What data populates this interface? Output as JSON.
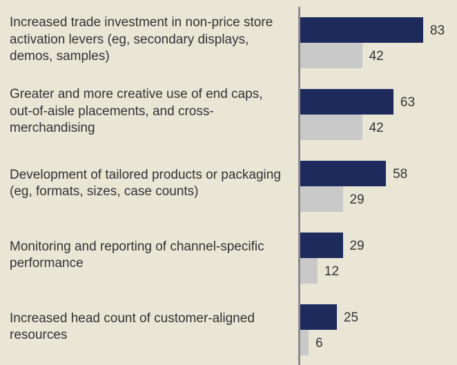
{
  "chart_data": {
    "type": "bar",
    "orientation": "horizontal",
    "categories": [
      "Increased trade investment in non-price store activation levers (eg, secondary displays, demos, samples)",
      "Greater and more creative use of end caps, out-of-aisle placements, and cross-merchandising",
      "Development of tailored products or packaging (eg, formats, sizes, case counts)",
      "Monitoring and reporting of channel-specific performance",
      "Increased head count of customer-aligned resources"
    ],
    "series": [
      {
        "color": "#1f2a5c",
        "values": [
          83,
          63,
          58,
          29,
          25
        ]
      },
      {
        "color": "#c9c9c9",
        "values": [
          42,
          42,
          29,
          12,
          6
        ]
      }
    ]
  }
}
